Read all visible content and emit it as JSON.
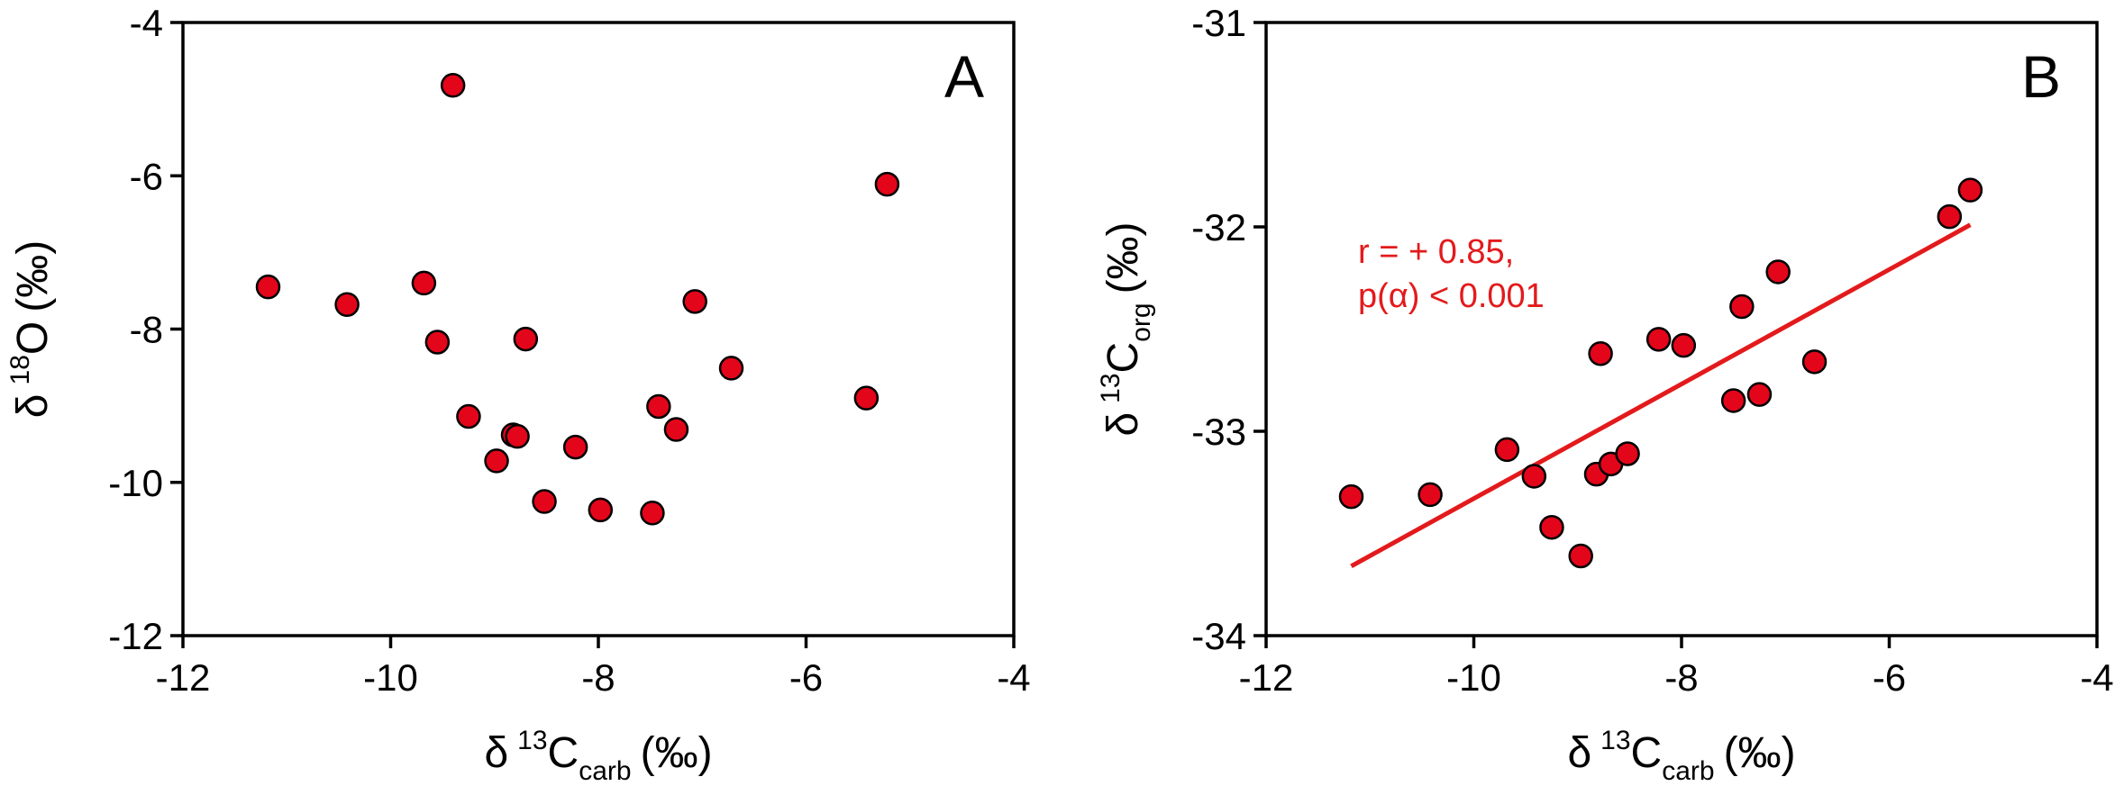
{
  "colors": {
    "marker_fill": "#E3051A",
    "marker_stroke": "#000000",
    "regression_line": "#E31A1C",
    "annotation": "#E31A1C"
  },
  "chart_data": [
    {
      "type": "scatter",
      "panel_letter": "A",
      "xlabel": {
        "delta": "δ",
        "sup": "13",
        "base": "C",
        "sub": "carb",
        "unit": "(‰)"
      },
      "ylabel": {
        "delta": "δ",
        "sup": "18",
        "base": "O",
        "sub": "",
        "unit": "(‰)"
      },
      "xlim": [
        -12,
        -4
      ],
      "ylim": [
        -12,
        -4
      ],
      "xticks": [
        -12,
        -10,
        -8,
        -6,
        -4
      ],
      "yticks": [
        -12,
        -10,
        -8,
        -6,
        -4
      ],
      "xtick_labels": [
        "-12",
        "-10",
        "-8",
        "-6",
        "-4"
      ],
      "ytick_labels": [
        "-12",
        "-10",
        "-8",
        "-6",
        "-4"
      ],
      "grid": false,
      "marker": "circle",
      "points": [
        {
          "x": -11.18,
          "y": -7.45
        },
        {
          "x": -10.42,
          "y": -7.68
        },
        {
          "x": -9.68,
          "y": -7.4
        },
        {
          "x": -9.55,
          "y": -8.17
        },
        {
          "x": -9.4,
          "y": -4.82
        },
        {
          "x": -9.25,
          "y": -9.14
        },
        {
          "x": -8.98,
          "y": -9.72
        },
        {
          "x": -8.82,
          "y": -9.38
        },
        {
          "x": -8.78,
          "y": -9.4
        },
        {
          "x": -8.7,
          "y": -8.13
        },
        {
          "x": -8.52,
          "y": -10.25
        },
        {
          "x": -8.22,
          "y": -9.54
        },
        {
          "x": -7.98,
          "y": -10.36
        },
        {
          "x": -7.48,
          "y": -10.4
        },
        {
          "x": -7.42,
          "y": -9.01
        },
        {
          "x": -7.25,
          "y": -9.31
        },
        {
          "x": -7.07,
          "y": -7.64
        },
        {
          "x": -6.72,
          "y": -8.51
        },
        {
          "x": -5.42,
          "y": -8.9
        },
        {
          "x": -5.22,
          "y": -6.11
        }
      ]
    },
    {
      "type": "scatter",
      "panel_letter": "B",
      "xlabel": {
        "delta": "δ",
        "sup": "13",
        "base": "C",
        "sub": "carb",
        "unit": "(‰)"
      },
      "ylabel": {
        "delta": "δ",
        "sup": "13",
        "base": "C",
        "sub": "org",
        "unit": "(‰)"
      },
      "xlim": [
        -12,
        -4
      ],
      "ylim": [
        -34,
        -31
      ],
      "xticks": [
        -12,
        -10,
        -8,
        -6,
        -4
      ],
      "yticks": [
        -34,
        -33,
        -32,
        -31
      ],
      "xtick_labels": [
        "-12",
        "-10",
        "-8",
        "-6",
        "-4"
      ],
      "ytick_labels": [
        "-34",
        "-33",
        "-32",
        "-31"
      ],
      "grid": false,
      "marker": "circle",
      "points": [
        {
          "x": -11.18,
          "y": -33.32
        },
        {
          "x": -10.42,
          "y": -33.31
        },
        {
          "x": -9.68,
          "y": -33.09
        },
        {
          "x": -9.42,
          "y": -33.22
        },
        {
          "x": -9.25,
          "y": -33.47
        },
        {
          "x": -8.97,
          "y": -33.61
        },
        {
          "x": -8.82,
          "y": -33.21
        },
        {
          "x": -8.78,
          "y": -32.62
        },
        {
          "x": -8.68,
          "y": -33.16
        },
        {
          "x": -8.52,
          "y": -33.11
        },
        {
          "x": -8.22,
          "y": -32.55
        },
        {
          "x": -7.98,
          "y": -32.58
        },
        {
          "x": -7.5,
          "y": -32.85
        },
        {
          "x": -7.42,
          "y": -32.39
        },
        {
          "x": -7.25,
          "y": -32.82
        },
        {
          "x": -7.07,
          "y": -32.22
        },
        {
          "x": -6.72,
          "y": -32.66
        },
        {
          "x": -5.42,
          "y": -31.95
        },
        {
          "x": -5.22,
          "y": -31.82
        }
      ],
      "regression": {
        "x": [
          -11.18,
          -5.22
        ],
        "y": [
          -33.66,
          -31.99
        ]
      },
      "annotation": [
        "r = + 0.85,",
        "p(α) < 0.001"
      ]
    }
  ]
}
